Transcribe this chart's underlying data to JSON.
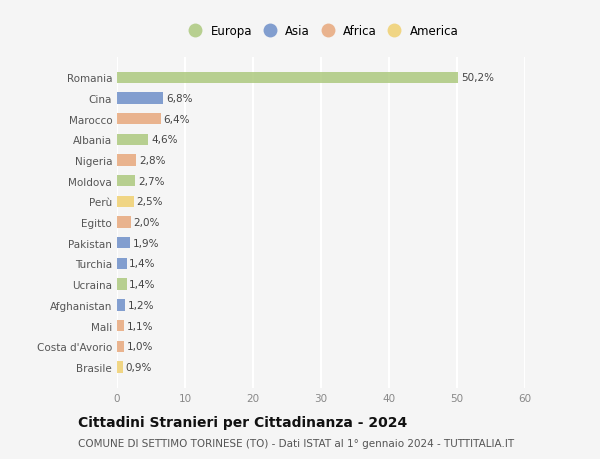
{
  "countries": [
    "Romania",
    "Cina",
    "Marocco",
    "Albania",
    "Nigeria",
    "Moldova",
    "Perù",
    "Egitto",
    "Pakistan",
    "Turchia",
    "Ucraina",
    "Afghanistan",
    "Mali",
    "Costa d'Avorio",
    "Brasile"
  ],
  "values": [
    50.2,
    6.8,
    6.4,
    4.6,
    2.8,
    2.7,
    2.5,
    2.0,
    1.9,
    1.4,
    1.4,
    1.2,
    1.1,
    1.0,
    0.9
  ],
  "labels": [
    "50,2%",
    "6,8%",
    "6,4%",
    "4,6%",
    "2,8%",
    "2,7%",
    "2,5%",
    "2,0%",
    "1,9%",
    "1,4%",
    "1,4%",
    "1,2%",
    "1,1%",
    "1,0%",
    "0,9%"
  ],
  "continents": [
    "Europa",
    "Asia",
    "Africa",
    "Europa",
    "Africa",
    "Europa",
    "America",
    "Africa",
    "Asia",
    "Asia",
    "Europa",
    "Asia",
    "Africa",
    "Africa",
    "America"
  ],
  "colors": {
    "Europa": "#adc97e",
    "Asia": "#6e8fc9",
    "Africa": "#e8a87c",
    "America": "#f0d070"
  },
  "legend_labels": [
    "Europa",
    "Asia",
    "Africa",
    "America"
  ],
  "legend_colors": [
    "#adc97e",
    "#6e8fc9",
    "#e8a87c",
    "#f0d070"
  ],
  "xlim": [
    0,
    60
  ],
  "xticks": [
    0,
    10,
    20,
    30,
    40,
    50,
    60
  ],
  "title": "Cittadini Stranieri per Cittadinanza - 2024",
  "subtitle": "COMUNE DI SETTIMO TORINESE (TO) - Dati ISTAT al 1° gennaio 2024 - TUTTITALIA.IT",
  "bg_color": "#f5f5f5",
  "bar_height": 0.55,
  "grid_color": "#ffffff",
  "label_fontsize": 7.5,
  "title_fontsize": 10,
  "subtitle_fontsize": 7.5,
  "country_fontsize": 7.5,
  "tick_fontsize": 7.5
}
